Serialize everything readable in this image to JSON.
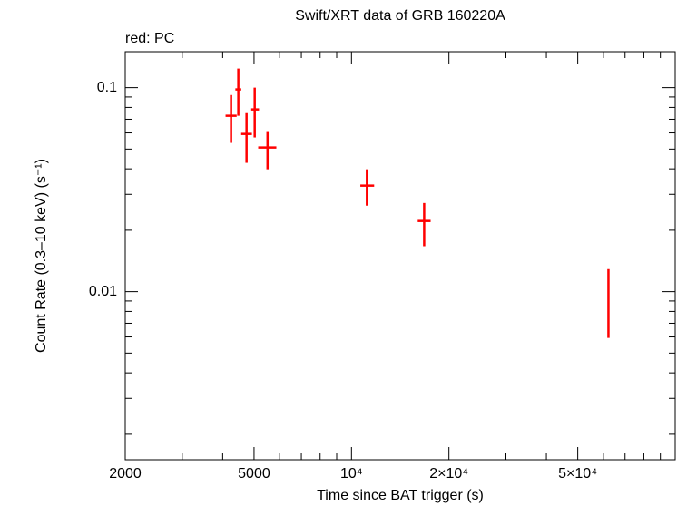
{
  "chart_data": {
    "type": "errorbar",
    "title": "Swift/XRT data of GRB 160220A",
    "annotation": "red: PC",
    "xlabel": "Time since BAT trigger (s)",
    "ylabel": "Count Rate (0.3–10 keV) (s⁻¹)",
    "xscale": "log",
    "yscale": "log",
    "xlim": [
      2000,
      100000
    ],
    "ylim": [
      0.0015,
      0.15
    ],
    "xticks": [
      2000,
      5000,
      {
        "value": 10000,
        "label": "10⁴"
      },
      {
        "value": 20000,
        "label": "2×10⁴"
      },
      {
        "value": 50000,
        "label": "5×10⁴"
      }
    ],
    "xminorticks": [
      3000,
      4000,
      6000,
      7000,
      8000,
      9000,
      30000,
      40000,
      60000,
      70000,
      80000,
      90000
    ],
    "yticks": [
      0.01,
      0.1
    ],
    "yminorticks": [
      0.002,
      0.003,
      0.004,
      0.005,
      0.006,
      0.007,
      0.008,
      0.009,
      0.02,
      0.03,
      0.04,
      0.05,
      0.06,
      0.07,
      0.08,
      0.09
    ],
    "series": [
      {
        "color": "#ff0000",
        "x": [
          4246,
          4471,
          4740,
          5024,
          5503,
          11160,
          16770,
          62200
        ],
        "x_low": [
          4083,
          4378,
          4563,
          4900,
          5150,
          10650,
          16020,
          61950
        ],
        "x_high": [
          4418,
          4565,
          4925,
          5180,
          5860,
          11750,
          17560,
          62450
        ],
        "values": [
          0.0728,
          0.098,
          0.0593,
          0.0782,
          0.0509,
          0.0331,
          0.0222,
          0.00894
        ],
        "y_low": [
          0.0536,
          0.0728,
          0.0428,
          0.057,
          0.0398,
          0.0264,
          0.0167,
          0.00593
        ],
        "y_high": [
          0.092,
          0.124,
          0.075,
          0.1,
          0.0606,
          0.0398,
          0.0272,
          0.0129
        ]
      }
    ]
  }
}
